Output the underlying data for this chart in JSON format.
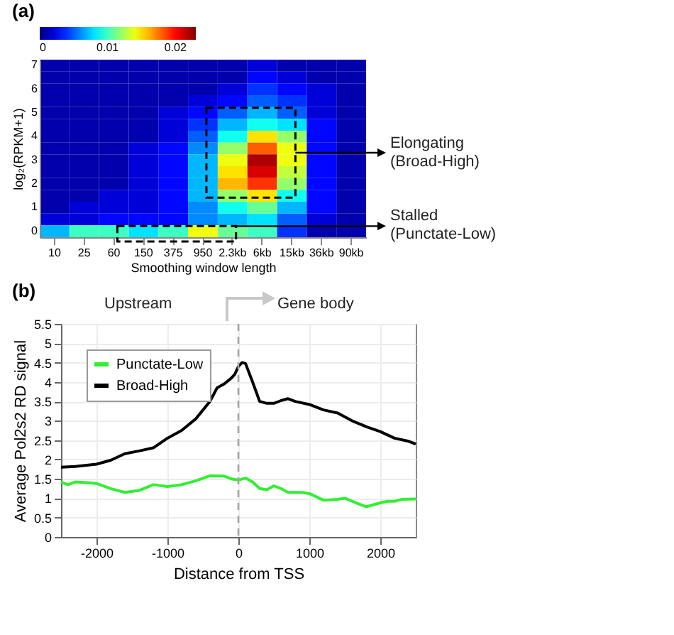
{
  "chart_data": [
    {
      "type": "heatmap",
      "title": "(a)",
      "xlabel": "Smoothing window length",
      "ylabel": "log₂(RPKM+1)",
      "categories": [
        "10",
        "25",
        "60",
        "150",
        "375",
        "950",
        "2.3kb",
        "6kb",
        "15kb",
        "36kb",
        "90kb"
      ],
      "y_categories": [
        "7",
        null,
        "6",
        null,
        "5",
        null,
        "4",
        null,
        "3",
        null,
        "2",
        null,
        "1",
        null,
        "0"
      ],
      "cells": [
        [
          0.001,
          0.001,
          0.001,
          0.001,
          0.001,
          0.001,
          0.001,
          0.002,
          0.001,
          0.001,
          0.001
        ],
        [
          0.001,
          0.001,
          0.001,
          0.001,
          0.001,
          0.001,
          0.001,
          0.003,
          0.002,
          0.001,
          0.001
        ],
        [
          0.001,
          0.001,
          0.001,
          0.001,
          0.001,
          0.001,
          0.002,
          0.004,
          0.003,
          0.002,
          0.001
        ],
        [
          0.001,
          0.001,
          0.001,
          0.001,
          0.001,
          0.002,
          0.003,
          0.005,
          0.004,
          0.002,
          0.001
        ],
        [
          0.001,
          0.001,
          0.001,
          0.001,
          0.002,
          0.003,
          0.005,
          0.007,
          0.005,
          0.002,
          0.001
        ],
        [
          0.001,
          0.001,
          0.001,
          0.001,
          0.002,
          0.004,
          0.007,
          0.009,
          0.008,
          0.003,
          0.001
        ],
        [
          0.001,
          0.001,
          0.001,
          0.001,
          0.002,
          0.005,
          0.009,
          0.015,
          0.012,
          0.003,
          0.001
        ],
        [
          0.001,
          0.001,
          0.001,
          0.002,
          0.003,
          0.006,
          0.012,
          0.018,
          0.014,
          0.003,
          0.001
        ],
        [
          0.001,
          0.001,
          0.001,
          0.002,
          0.003,
          0.007,
          0.014,
          0.022,
          0.014,
          0.003,
          0.001
        ],
        [
          0.001,
          0.001,
          0.001,
          0.002,
          0.003,
          0.007,
          0.015,
          0.021,
          0.013,
          0.003,
          0.001
        ],
        [
          0.001,
          0.001,
          0.001,
          0.002,
          0.003,
          0.007,
          0.016,
          0.019,
          0.012,
          0.003,
          0.001
        ],
        [
          0.001,
          0.001,
          0.002,
          0.002,
          0.003,
          0.007,
          0.012,
          0.015,
          0.009,
          0.003,
          0.001
        ],
        [
          0.001,
          0.002,
          0.002,
          0.002,
          0.003,
          0.006,
          0.009,
          0.011,
          0.007,
          0.003,
          0.001
        ],
        [
          0.002,
          0.002,
          0.003,
          0.003,
          0.003,
          0.006,
          0.007,
          0.008,
          0.005,
          0.002,
          0.001
        ],
        [
          0.007,
          0.01,
          0.01,
          0.008,
          0.01,
          0.014,
          0.011,
          0.01,
          0.004,
          0.001,
          0.001
        ]
      ],
      "clim": [
        0,
        0.023
      ],
      "cticks": [
        0,
        0.01,
        0.02
      ],
      "annotations": [
        "Elongating (Broad-High)",
        "Stalled (Punctate-Low)"
      ]
    },
    {
      "type": "line",
      "title": "(b)",
      "xlabel": "Distance from TSS",
      "ylabel": "Average Pol2s2 RD signal",
      "xlim": [
        -2500,
        2500
      ],
      "ylim": [
        0,
        5.5
      ],
      "xticks": [
        -2000,
        -1000,
        0,
        1000,
        2000
      ],
      "yticks": [
        0,
        0.5,
        1,
        1.5,
        2,
        2.5,
        3,
        3.5,
        4,
        4.5,
        5,
        5.5
      ],
      "grid": true,
      "legend": "top left",
      "ref_lines": [
        {
          "axis": "x",
          "value": 0,
          "color": "#a6a6a6",
          "line_style": "dashed"
        }
      ],
      "annotations": [
        "Upstream",
        "Gene body"
      ],
      "series": [
        {
          "name": "Punctate-Low",
          "color": "#33ee33",
          "x": [
            -2500,
            -2400,
            -2300,
            -2100,
            -2000,
            -1800,
            -1600,
            -1400,
            -1200,
            -1000,
            -800,
            -600,
            -400,
            -200,
            -100,
            0,
            100,
            200,
            300,
            400,
            500,
            600,
            700,
            900,
            1000,
            1200,
            1400,
            1500,
            1700,
            1800,
            2000,
            2100,
            2200,
            2300,
            2500
          ],
          "values": [
            1.42,
            1.35,
            1.42,
            1.4,
            1.38,
            1.25,
            1.15,
            1.2,
            1.35,
            1.3,
            1.35,
            1.45,
            1.58,
            1.57,
            1.5,
            1.47,
            1.52,
            1.42,
            1.25,
            1.22,
            1.32,
            1.25,
            1.15,
            1.15,
            1.12,
            0.95,
            0.97,
            1.0,
            0.85,
            0.78,
            0.88,
            0.92,
            0.92,
            0.97,
            0.98
          ]
        },
        {
          "name": "Broad-High",
          "color": "#000000",
          "x": [
            -2500,
            -2300,
            -2000,
            -1800,
            -1600,
            -1400,
            -1200,
            -1000,
            -800,
            -600,
            -400,
            -300,
            -200,
            -100,
            -50,
            0,
            50,
            100,
            200,
            300,
            400,
            500,
            600,
            700,
            800,
            1000,
            1200,
            1400,
            1600,
            1800,
            2000,
            2200,
            2400,
            2500
          ],
          "values": [
            1.8,
            1.82,
            1.88,
            1.98,
            2.15,
            2.22,
            2.3,
            2.55,
            2.75,
            3.05,
            3.5,
            3.85,
            3.95,
            4.1,
            4.2,
            4.4,
            4.5,
            4.48,
            4.0,
            3.5,
            3.45,
            3.45,
            3.52,
            3.57,
            3.5,
            3.42,
            3.28,
            3.2,
            3.0,
            2.85,
            2.72,
            2.55,
            2.47,
            2.4
          ]
        }
      ]
    }
  ]
}
